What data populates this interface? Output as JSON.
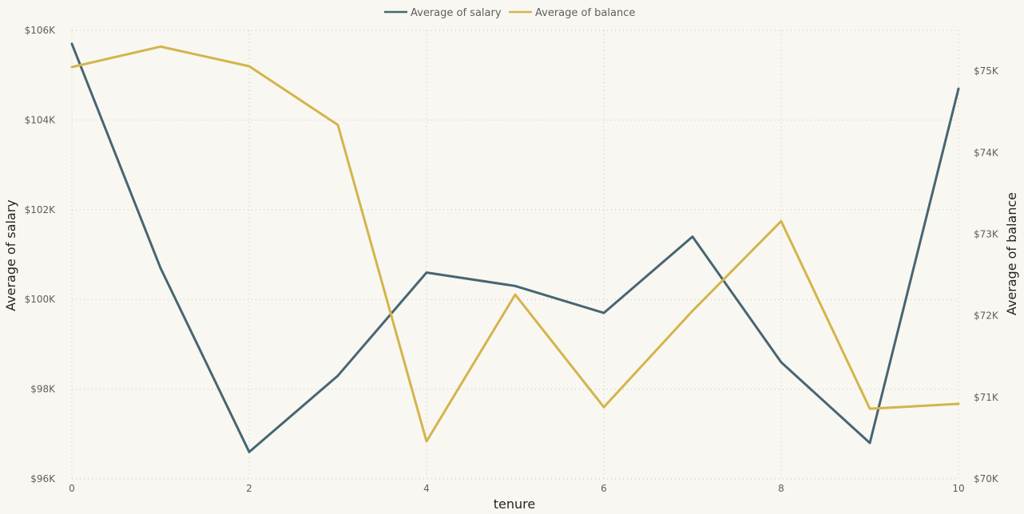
{
  "chart_data": {
    "type": "line",
    "x": [
      0,
      1,
      2,
      3,
      4,
      5,
      6,
      7,
      8,
      9,
      10
    ],
    "xlabel": "tenure",
    "x_ticks": [
      0,
      2,
      4,
      6,
      8,
      10
    ],
    "x_tick_labels": [
      "0",
      "2",
      "4",
      "6",
      "8",
      "10"
    ],
    "xlim": [
      0,
      10
    ],
    "series": [
      {
        "name": "Average of salary",
        "axis": "left",
        "color": "#466672",
        "values": [
          105700,
          100700,
          96600,
          98300,
          100600,
          100300,
          99700,
          101400,
          98600,
          96800,
          104700
        ]
      },
      {
        "name": "Average of balance",
        "axis": "right",
        "color": "#d4b44b",
        "values": [
          75050,
          75300,
          75060,
          74340,
          70460,
          72260,
          70880,
          72060,
          73160,
          70860,
          70920
        ]
      }
    ],
    "y_left": {
      "label": "Average of salary",
      "ylim": [
        96000,
        106000
      ],
      "ticks": [
        96000,
        98000,
        100000,
        102000,
        104000,
        106000
      ],
      "tick_labels": [
        "$96K",
        "$98K",
        "$100K",
        "$102K",
        "$104K",
        "$106K"
      ]
    },
    "y_right": {
      "label": "Average of balance",
      "ylim": [
        70000,
        75500
      ],
      "ticks": [
        70000,
        71000,
        72000,
        73000,
        74000,
        75000
      ],
      "tick_labels": [
        "$70K",
        "$71K",
        "$72K",
        "$73K",
        "$74K",
        "$75K"
      ]
    },
    "grid": true,
    "legend_position": "top-center"
  }
}
